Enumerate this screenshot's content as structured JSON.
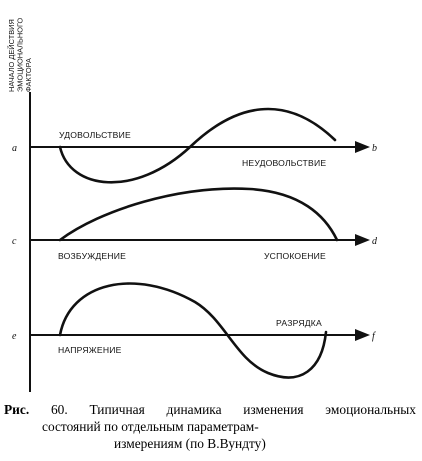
{
  "side_label": {
    "lines": [
      "НАЧАЛО ДЕЙСТВИЯ",
      "ЭМОЦИОНАЛЬНОГО",
      "ФАКТОРА"
    ]
  },
  "axes": [
    {
      "start": "a",
      "end": "b",
      "label_top": "УДОВОЛЬСТВИЕ",
      "label_bottom": "НЕУДОВОЛЬСТВИЕ"
    },
    {
      "start": "c",
      "end": "d",
      "label_top": "",
      "label_left": "ВОЗБУЖДЕНИЕ",
      "label_right": "УСПОКОЕНИЕ"
    },
    {
      "start": "e",
      "end": "f",
      "label_top": "РАЗРЯДКА",
      "label_bottom": "НАПРЯЖЕНИЕ"
    }
  ],
  "caption": {
    "prefix": "Рис.",
    "line1": "60. Типичная динамика изменения эмоциональных",
    "line2": "состояний по отдельным параметрам-",
    "line3": "измерениям (по В.Вундту)"
  }
}
